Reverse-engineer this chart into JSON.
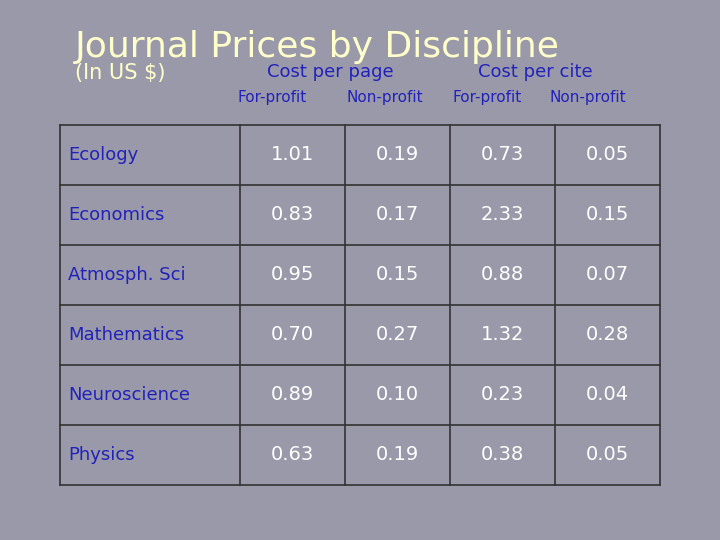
{
  "title": "Journal Prices by Discipline",
  "subtitle": "(In US $)",
  "bg_color": "#9999aa",
  "title_color": "#ffffcc",
  "subtitle_color": "#ffffcc",
  "col_group_color": "#2222bb",
  "col_sub_color": "#2222bb",
  "row_label_color": "#2222bb",
  "data_color": "#ffffff",
  "table_bg": "#9999aa",
  "cell_border_color": "#333333",
  "col_group_labels": [
    "Cost per page",
    "Cost per cite"
  ],
  "col_sub_labels": [
    "For-profit",
    "Non-profit",
    "For-profit",
    "Non-profit"
  ],
  "rows": [
    [
      "Ecology",
      "1.01",
      "0.19",
      "0.73",
      "0.05"
    ],
    [
      "Economics",
      "0.83",
      "0.17",
      "2.33",
      "0.15"
    ],
    [
      "Atmosph. Sci",
      "0.95",
      "0.15",
      "0.88",
      "0.07"
    ],
    [
      "Mathematics",
      "0.70",
      "0.27",
      "1.32",
      "0.28"
    ],
    [
      "Neuroscience",
      "0.89",
      "0.10",
      "0.23",
      "0.04"
    ],
    [
      "Physics",
      "0.63",
      "0.19",
      "0.38",
      "0.05"
    ]
  ],
  "title_fontsize": 26,
  "subtitle_fontsize": 15,
  "group_header_fontsize": 13,
  "sub_header_fontsize": 11,
  "row_label_fontsize": 13,
  "data_fontsize": 14
}
